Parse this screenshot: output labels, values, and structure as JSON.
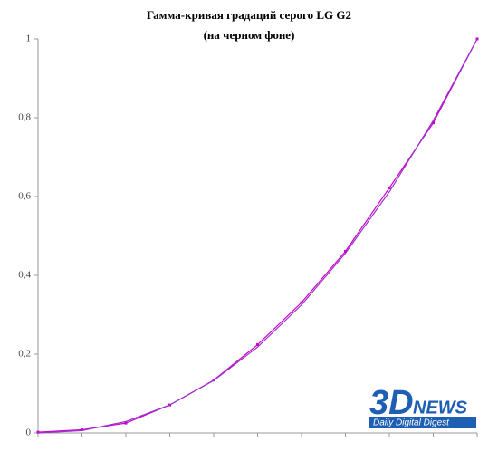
{
  "chart_data": {
    "type": "line",
    "title": "Гамма-кривая градаций серого LG G2",
    "subtitle": "(на черном фоне)",
    "categories": [
      null,
      null,
      null,
      null,
      null,
      null,
      null,
      null,
      null,
      null,
      null
    ],
    "series": [
      {
        "color": "#cc00cc",
        "markers": true,
        "values": [
          0.002,
          0.008,
          0.025,
          0.071,
          0.134,
          0.224,
          0.331,
          0.461,
          0.622,
          0.787,
          1.0
        ]
      },
      {
        "color": "#9a33cc",
        "markers": false,
        "values": [
          0,
          0.006,
          0.029,
          0.071,
          0.133,
          0.218,
          0.325,
          0.456,
          0.612,
          0.793,
          1.0
        ]
      }
    ],
    "ylim": [
      0,
      1
    ],
    "yticks": [
      0,
      {
        "value": 0.2,
        "label": "0,2"
      },
      {
        "value": 0.4,
        "label": "0,4"
      },
      {
        "value": 0.6,
        "label": "0,6"
      },
      {
        "value": 0.8,
        "label": "0,8"
      },
      1
    ],
    "grid": false,
    "watermark": {
      "logo": "3D",
      "logo_rest": "NEWS",
      "tagline": "Daily Digital Digest"
    }
  }
}
